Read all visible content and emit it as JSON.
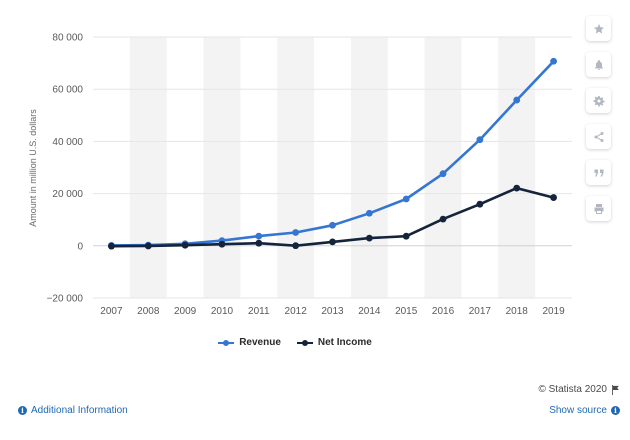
{
  "chart_data": {
    "type": "line",
    "title": "",
    "xlabel": "",
    "ylabel": "Amount in million U.S. dollars",
    "categories": [
      "2007",
      "2008",
      "2009",
      "2010",
      "2011",
      "2012",
      "2013",
      "2014",
      "2015",
      "2016",
      "2017",
      "2018",
      "2019"
    ],
    "ylim": [
      -20000,
      80000
    ],
    "yticks": [
      -20000,
      0,
      20000,
      40000,
      60000,
      80000
    ],
    "ytick_labels": [
      "−20 000",
      "0",
      "20 000",
      "40 000",
      "60 000",
      "80 000"
    ],
    "grid": true,
    "legend_position": "bottom-center",
    "series": [
      {
        "name": "Revenue",
        "color": "#3576d2",
        "values": [
          153,
          272,
          777,
          1974,
          3711,
          5089,
          7872,
          12466,
          17928,
          27638,
          40653,
          55838,
          70697
        ]
      },
      {
        "name": "Net Income",
        "color": "#15243a",
        "values": [
          -138,
          -56,
          229,
          606,
          1000,
          53,
          1500,
          2940,
          3688,
          10217,
          15934,
          22112,
          18485
        ]
      }
    ]
  },
  "toolbar": {
    "icons": [
      "star-icon",
      "bell-icon",
      "gear-icon",
      "share-icon",
      "quote-icon",
      "print-icon"
    ]
  },
  "footer": {
    "credit": "© Statista 2020",
    "additional_info": "Additional Information",
    "show_source": "Show source"
  }
}
